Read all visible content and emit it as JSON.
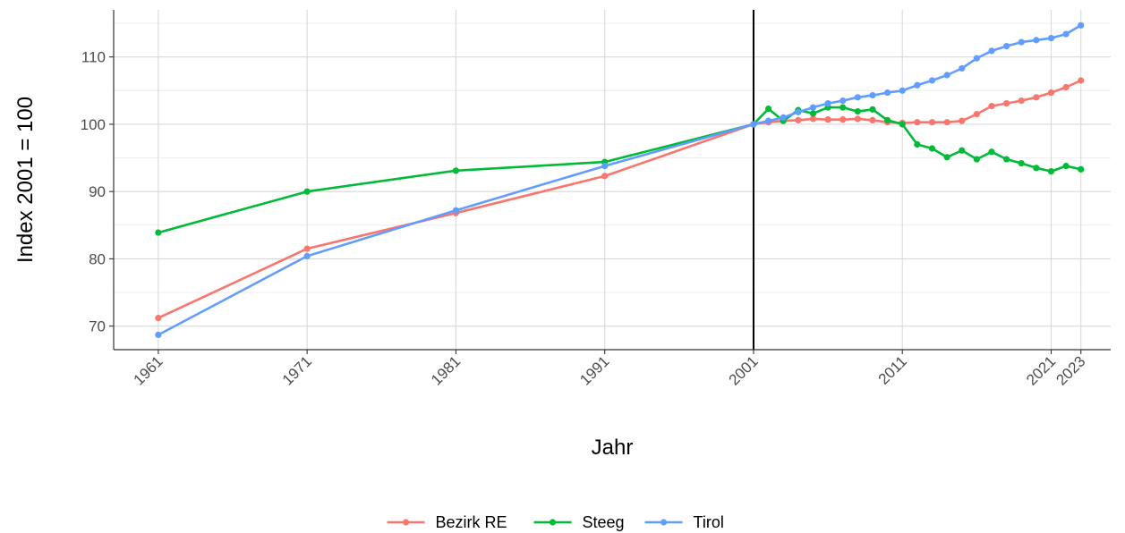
{
  "chart_data": {
    "type": "line",
    "xlabel": "Jahr",
    "ylabel": "Index 2001 = 100",
    "xlim": [
      1958,
      2025
    ],
    "ylim": [
      66.5,
      117
    ],
    "x_ticks": [
      1961,
      1971,
      1981,
      1991,
      2001,
      2011,
      2021,
      2023
    ],
    "y_ticks": [
      70,
      80,
      90,
      100,
      110
    ],
    "y_minor": [
      75,
      85,
      95,
      105,
      115
    ],
    "grid": true,
    "reference_line_x": 2001,
    "legend_position": "bottom",
    "series": [
      {
        "name": "Bezirk RE",
        "color": "#F8766D",
        "x": [
          1961,
          1971,
          1981,
          1991,
          2001,
          2002,
          2003,
          2004,
          2005,
          2006,
          2007,
          2008,
          2009,
          2010,
          2011,
          2012,
          2013,
          2014,
          2015,
          2016,
          2017,
          2018,
          2019,
          2020,
          2021,
          2022,
          2023
        ],
        "y": [
          71.2,
          81.5,
          86.8,
          92.3,
          100,
          100.3,
          100.5,
          100.6,
          100.8,
          100.7,
          100.7,
          100.8,
          100.6,
          100.3,
          100.2,
          100.3,
          100.3,
          100.3,
          100.5,
          101.5,
          102.7,
          103.1,
          103.5,
          104.0,
          104.7,
          105.5,
          106.5
        ]
      },
      {
        "name": "Steeg",
        "color": "#00BA38",
        "x": [
          1961,
          1971,
          1981,
          1991,
          2001,
          2002,
          2003,
          2004,
          2005,
          2006,
          2007,
          2008,
          2009,
          2010,
          2011,
          2012,
          2013,
          2014,
          2015,
          2016,
          2017,
          2018,
          2019,
          2020,
          2021,
          2022,
          2023
        ],
        "y": [
          83.9,
          90.0,
          93.1,
          94.4,
          100,
          102.3,
          100.5,
          102.1,
          101.6,
          102.5,
          102.5,
          101.9,
          102.2,
          100.6,
          100.0,
          97.0,
          96.4,
          95.1,
          96.1,
          94.8,
          95.9,
          94.8,
          94.2,
          93.5,
          93.0,
          93.8,
          93.3
        ]
      },
      {
        "name": "Tirol",
        "color": "#619CFF",
        "x": [
          1961,
          1971,
          1981,
          1991,
          2001,
          2002,
          2003,
          2004,
          2005,
          2006,
          2007,
          2008,
          2009,
          2010,
          2011,
          2012,
          2013,
          2014,
          2015,
          2016,
          2017,
          2018,
          2019,
          2020,
          2021,
          2022,
          2023
        ],
        "y": [
          68.7,
          80.4,
          87.2,
          93.8,
          100,
          100.5,
          101.0,
          101.8,
          102.5,
          103.1,
          103.5,
          104.0,
          104.3,
          104.7,
          105.0,
          105.8,
          106.5,
          107.3,
          108.3,
          109.8,
          110.9,
          111.6,
          112.2,
          112.5,
          112.8,
          113.4,
          114.7
        ]
      }
    ]
  }
}
